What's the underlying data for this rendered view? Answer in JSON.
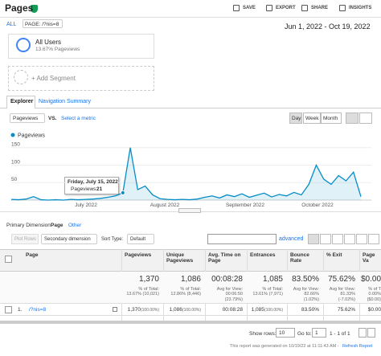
{
  "header": {
    "title": "Pages",
    "actions": [
      "SAVE",
      "EXPORT",
      "SHARE",
      "INSIGHTS"
    ]
  },
  "breadcrumb": {
    "all": "ALL",
    "page": "PAGE: /?nis=8"
  },
  "date_range": "Jun 1, 2022 - Oct 19, 2022",
  "segments": {
    "name": "All Users",
    "share": "13.67% Pageviews",
    "add": "+ Add Segment"
  },
  "tabs": [
    "Explorer",
    "Navigation Summary"
  ],
  "metric": {
    "selected": "Pageviews",
    "vs": "VS.",
    "other": "Select a metric"
  },
  "granularity": [
    "Day",
    "Week",
    "Month"
  ],
  "chart": {
    "type": "line",
    "series": [
      {
        "name": "Pageviews",
        "color": "#058dc7",
        "values": [
          2,
          1,
          3,
          10,
          1,
          0,
          1,
          0,
          2,
          1,
          2,
          3,
          5,
          8,
          12,
          21,
          150,
          30,
          40,
          15,
          4,
          2,
          1,
          2,
          1,
          3,
          8,
          12,
          6,
          15,
          10,
          18,
          8,
          14,
          20,
          9,
          16,
          12,
          22,
          15,
          45,
          100,
          60,
          45,
          70,
          55,
          80,
          10
        ]
      }
    ],
    "ylim": [
      0,
      170
    ],
    "yticks": [
      50,
      100,
      150
    ],
    "x_labels": [
      "July 2022",
      "August 2022",
      "September 2022",
      "October 2022"
    ],
    "tooltip": {
      "date": "Friday, July 15, 2022",
      "label": "Pageviews:",
      "value": 21
    }
  },
  "dimension": {
    "label": "Primary Dimension:",
    "selected": "Page",
    "other": "Other"
  },
  "toolbar": {
    "plot_rows": "Plot Rows",
    "secondary": "Secondary dimension",
    "sort_label": "Sort Type:",
    "sort": "Default",
    "advanced": "advanced"
  },
  "table": {
    "columns": [
      "Page",
      "Pageviews",
      "Unique Pageviews",
      "Avg. Time on Page",
      "Entrances",
      "Bounce Rate",
      "% Exit",
      "Page Va"
    ],
    "totals": [
      [
        "1,370",
        "% of Total: 13.67% (10,021)"
      ],
      [
        "1,086",
        "% of Total: 12.86% (8,446)"
      ],
      [
        "00:08:28",
        "Avg for View: 00:06:50 (23.79%)"
      ],
      [
        "1,085",
        "% of Total: 13.61% (7,971)"
      ],
      [
        "83.50%",
        "Avg for View: 82.66% (1.02%)"
      ],
      [
        "75.62%",
        "Avg for View: 81.33% (-7.02%)"
      ],
      [
        "$0.00",
        "% of T 0.00% ($0.00)"
      ]
    ],
    "rows": [
      {
        "index": "1.",
        "page": "/?nis=8",
        "cells": [
          [
            "1,370",
            "(100.00%)"
          ],
          [
            "1,086",
            "(100.00%)"
          ],
          [
            "00:08:28",
            ""
          ],
          [
            "1,085",
            "(100.00%)"
          ],
          [
            "83.50%",
            ""
          ],
          [
            "75.62%",
            ""
          ],
          [
            "$0.00",
            ""
          ]
        ]
      }
    ]
  },
  "pagination": {
    "show_rows": "Show rows:",
    "rows": "10",
    "goto": "Go to:",
    "page": "1",
    "range": "1 - 1 of 1"
  },
  "footer": {
    "text": "This report was generated on 10/19/22 at 11:11:43 AM - ",
    "link": "Refresh Report"
  }
}
